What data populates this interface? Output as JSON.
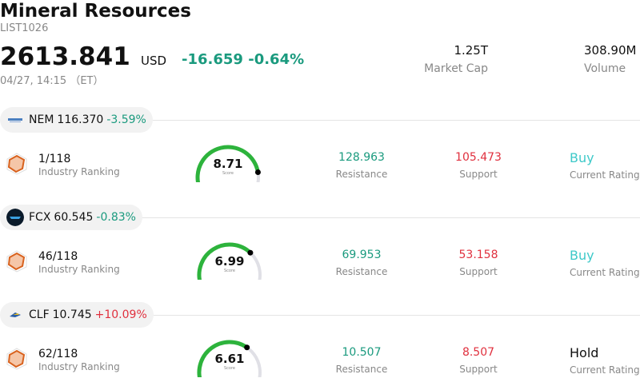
{
  "header": {
    "title": "Mineral Resources",
    "code": "LIST1026",
    "price": "2613.841",
    "currency": "USD",
    "change": "-16.659",
    "change_pct": "-0.64%",
    "time": "04/27, 14:15 （ET）",
    "market_cap_value": "1.25T",
    "market_cap_label": "Market Cap",
    "volume_value": "308.90M",
    "volume_label": "Volume"
  },
  "colors": {
    "negative": "#1a9a7e",
    "positive": "#e0303e",
    "buy": "#3ec9c9",
    "gauge_track": "#e0e0e6",
    "gauge_fill": "#2db33c"
  },
  "stocks": [
    {
      "symbol": "NEM",
      "price": "116.370",
      "change_pct": "-3.59%",
      "change_dir": "neg",
      "logo_icon": "newmont-logo-icon",
      "ranking": "1/118",
      "ranking_label": "Industry Ranking",
      "score": "8.71",
      "score_label": "Score",
      "score_fraction": 0.871,
      "resistance": "128.963",
      "resistance_label": "Resistance",
      "support": "105.473",
      "support_label": "Support",
      "rating": "Buy",
      "rating_label": "Current Rating"
    },
    {
      "symbol": "FCX",
      "price": "60.545",
      "change_pct": "-0.83%",
      "change_dir": "neg",
      "logo_icon": "freeport-logo-icon",
      "ranking": "46/118",
      "ranking_label": "Industry Ranking",
      "score": "6.99",
      "score_label": "Score",
      "score_fraction": 0.699,
      "resistance": "69.953",
      "resistance_label": "Resistance",
      "support": "53.158",
      "support_label": "Support",
      "rating": "Buy",
      "rating_label": "Current Rating"
    },
    {
      "symbol": "CLF",
      "price": "10.745",
      "change_pct": "+10.09%",
      "change_dir": "pos",
      "logo_icon": "cleveland-cliffs-logo-icon",
      "ranking": "62/118",
      "ranking_label": "Industry Ranking",
      "score": "6.61",
      "score_label": "Score",
      "score_fraction": 0.661,
      "resistance": "10.507",
      "resistance_label": "Resistance",
      "support": "8.507",
      "support_label": "Support",
      "rating": "Hold",
      "rating_label": "Current Rating"
    }
  ]
}
